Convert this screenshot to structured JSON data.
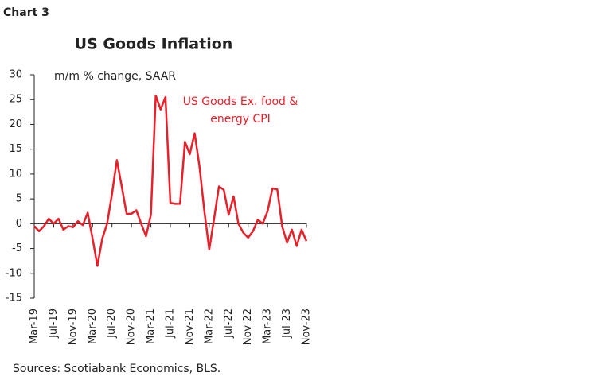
{
  "chart_data": {
    "type": "line",
    "header": "Chart 3",
    "title": "US Goods Inflation",
    "y_label": "m/m % change, SAAR",
    "source": "Sources: Scotiabank Economics, BLS.",
    "categories": [
      "Mar-19",
      null,
      null,
      null,
      "Jul-19",
      null,
      null,
      null,
      "Nov-19",
      null,
      null,
      null,
      "Mar-20",
      null,
      null,
      null,
      "Jul-20",
      null,
      null,
      null,
      "Nov-20",
      null,
      null,
      null,
      "Mar-21",
      null,
      null,
      null,
      "Jul-21",
      null,
      null,
      null,
      "Nov-21",
      null,
      null,
      null,
      "Mar-22",
      null,
      null,
      null,
      "Jul-22",
      null,
      null,
      null,
      "Nov-22",
      null,
      null,
      null,
      "Mar-23",
      null,
      null,
      null,
      "Jul-23",
      null,
      null,
      null,
      "Nov-23"
    ],
    "series": [
      {
        "name": "US Goods Ex. food & energy CPI",
        "color": "#e8202a",
        "values": [
          -0.5,
          -1.5,
          -0.5,
          1.0,
          0,
          1.0,
          -1.2,
          -0.5,
          -0.7,
          0.5,
          -0.3,
          2.2,
          -3,
          -8.5,
          -3,
          0,
          6,
          12.8,
          7.5,
          2,
          2,
          2.7,
          0,
          -2.5,
          1.8,
          25.8,
          23,
          25.5,
          4.2,
          4,
          4,
          16.5,
          14,
          18.2,
          11.5,
          2.5,
          -5.2,
          1,
          7.5,
          6.8,
          1.8,
          5.5,
          0,
          -1.8,
          -2.8,
          -1.5,
          0.8,
          0,
          2.5,
          7.1,
          6.9,
          -0.5,
          -3.8,
          -1.2,
          -4.5,
          -1.2,
          -3.5
        ]
      }
    ],
    "ylim": [
      -15,
      30
    ],
    "yticks": [
      -15,
      -10,
      -5,
      0,
      5,
      10,
      15,
      20,
      25,
      30
    ],
    "grid": false
  }
}
